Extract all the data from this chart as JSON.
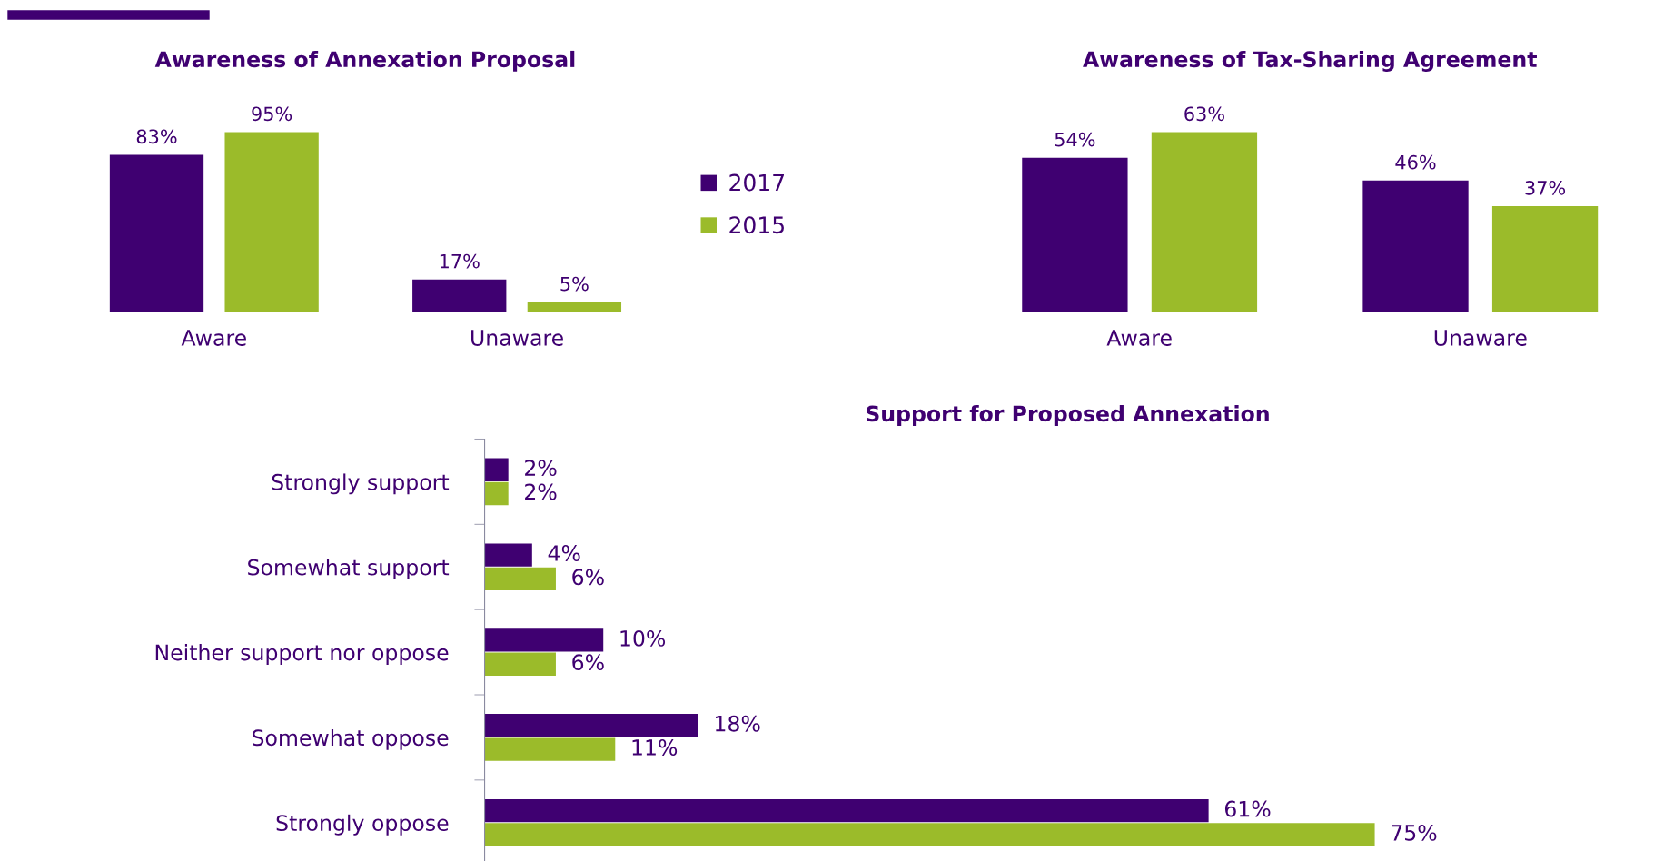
{
  "chart_data": [
    {
      "type": "bar",
      "title": "Awareness of Annexation Proposal",
      "categories": [
        "Aware",
        "Unaware"
      ],
      "legend": "right",
      "tick_labels": "x",
      "series": [
        {
          "name": "2017",
          "color": "#3f0071",
          "values": [
            83,
            17
          ],
          "value_labels": [
            "83%",
            "17%"
          ]
        },
        {
          "name": "2015",
          "color": "#9bbb2a",
          "values": [
            95,
            5
          ],
          "value_labels": [
            "95%",
            "5%"
          ]
        }
      ]
    },
    {
      "type": "bar",
      "title": "Awareness of Tax-Sharing Agreement",
      "categories": [
        "Aware",
        "Unaware"
      ],
      "tick_labels": "x",
      "series": [
        {
          "color": "#3f0071",
          "values": [
            54,
            46
          ],
          "value_labels": [
            "54%",
            "46%"
          ]
        },
        {
          "color": "#9bbb2a",
          "values": [
            63,
            37
          ],
          "value_labels": [
            "63%",
            "37%"
          ]
        }
      ]
    },
    {
      "type": "bar",
      "orientation": "horizontal",
      "title": "Support for Proposed Annexation",
      "categories": [
        "Strongly support",
        "Somewhat support",
        "Neither support nor oppose",
        "Somewhat oppose",
        "Strongly oppose"
      ],
      "tick_labels": "y",
      "series": [
        {
          "color": "#3f0071",
          "values": [
            2,
            4,
            10,
            18,
            61
          ],
          "value_labels": [
            "2%",
            "4%",
            "10%",
            "18%",
            "61%"
          ]
        },
        {
          "color": "#9bbb2a",
          "values": [
            2,
            6,
            6,
            11,
            75
          ],
          "value_labels": [
            "2%",
            "6%",
            "6%",
            "11%",
            "75%"
          ]
        }
      ]
    }
  ]
}
